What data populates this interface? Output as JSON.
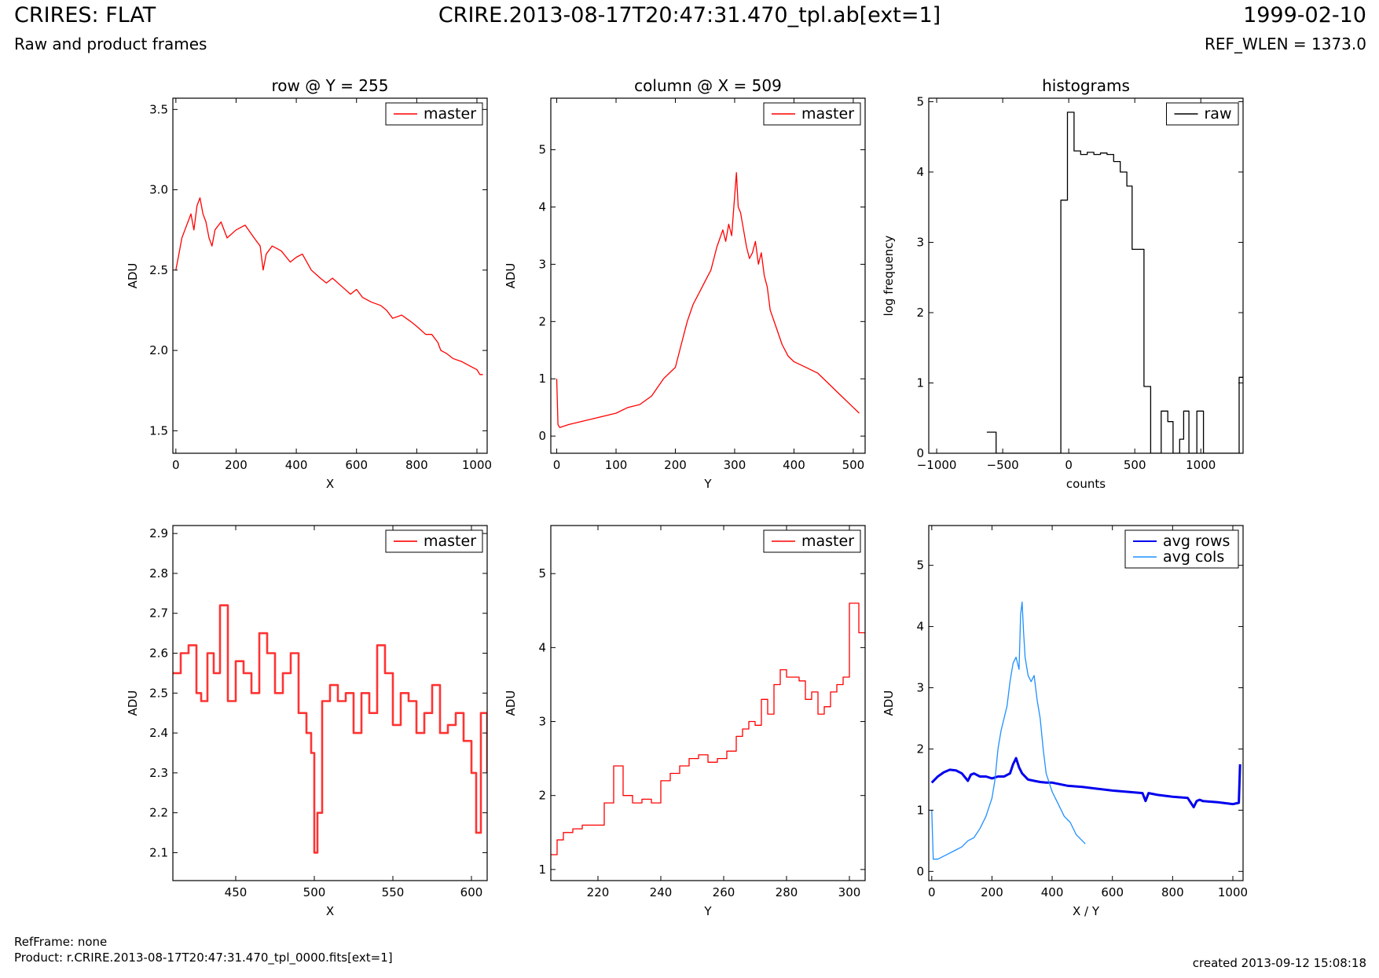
{
  "header": {
    "title": "CRIRES: FLAT",
    "subtitle": "Raw and product frames",
    "filename": "CRIRE.2013-08-17T20:47:31.470_tpl.ab[ext=1]",
    "date": "1999-02-10",
    "ref_wlen": "REF_WLEN = 1373.0"
  },
  "footer": {
    "refframe": "RefFrame: none",
    "product": "Product: r.CRIRE.2013-08-17T20:47:31.470_tpl_0000.fits[ext=1]",
    "created": "created 2013-09-12 15:08:18"
  },
  "colors": {
    "master": "#ff0000",
    "master_zoom": "#ff3333",
    "raw": "#000000",
    "avg_rows": "#0000ee",
    "avg_cols": "#1e90ff"
  },
  "chart_data": [
    {
      "id": "row",
      "type": "line",
      "title": "row @ Y = 255",
      "xlabel": "X",
      "ylabel": "ADU",
      "xlim": [
        -10,
        1034
      ],
      "ylim": [
        1.36,
        3.57
      ],
      "xticks": [
        0,
        200,
        400,
        600,
        800,
        1000
      ],
      "yticks": [
        1.5,
        2.0,
        2.5,
        3.0,
        3.5
      ],
      "legend": "top-right",
      "series": [
        {
          "name": "master",
          "color": "#ff0000",
          "width": 1.3,
          "x": [
            0,
            10,
            20,
            30,
            40,
            50,
            60,
            70,
            80,
            90,
            100,
            110,
            120,
            130,
            150,
            170,
            200,
            230,
            260,
            280,
            290,
            300,
            320,
            350,
            380,
            400,
            420,
            450,
            480,
            500,
            520,
            550,
            580,
            600,
            620,
            650,
            680,
            700,
            720,
            750,
            780,
            800,
            830,
            850,
            870,
            880,
            900,
            920,
            950,
            980,
            1000,
            1010,
            1020
          ],
          "y": [
            2.5,
            2.6,
            2.7,
            2.75,
            2.8,
            2.85,
            2.75,
            2.9,
            2.95,
            2.85,
            2.8,
            2.7,
            2.65,
            2.75,
            2.8,
            2.7,
            2.75,
            2.78,
            2.7,
            2.65,
            2.5,
            2.6,
            2.65,
            2.62,
            2.55,
            2.58,
            2.6,
            2.5,
            2.45,
            2.42,
            2.45,
            2.4,
            2.35,
            2.38,
            2.33,
            2.3,
            2.28,
            2.25,
            2.2,
            2.22,
            2.18,
            2.15,
            2.1,
            2.1,
            2.05,
            2.0,
            1.98,
            1.95,
            1.93,
            1.9,
            1.88,
            1.85,
            1.85
          ]
        }
      ]
    },
    {
      "id": "col",
      "type": "line",
      "title": "column @ X = 509",
      "xlabel": "Y",
      "ylabel": "ADU",
      "xlim": [
        -10,
        520
      ],
      "ylim": [
        -0.3,
        5.9
      ],
      "xticks": [
        0,
        100,
        200,
        300,
        400,
        500
      ],
      "yticks": [
        0,
        1,
        2,
        3,
        4,
        5
      ],
      "legend": "top-right",
      "series": [
        {
          "name": "master",
          "color": "#ff0000",
          "width": 1.3,
          "x": [
            0,
            2,
            5,
            20,
            40,
            60,
            80,
            100,
            120,
            140,
            160,
            180,
            200,
            210,
            220,
            230,
            240,
            250,
            260,
            270,
            280,
            285,
            290,
            295,
            300,
            303,
            306,
            310,
            315,
            320,
            325,
            330,
            335,
            340,
            345,
            350,
            355,
            360,
            370,
            380,
            390,
            400,
            420,
            440,
            460,
            480,
            500,
            510
          ],
          "y": [
            1.0,
            0.2,
            0.15,
            0.2,
            0.25,
            0.3,
            0.35,
            0.4,
            0.5,
            0.55,
            0.7,
            1.0,
            1.2,
            1.6,
            2.0,
            2.3,
            2.5,
            2.7,
            2.9,
            3.3,
            3.6,
            3.4,
            3.7,
            3.5,
            4.2,
            4.6,
            4.0,
            3.9,
            3.6,
            3.3,
            3.1,
            3.2,
            3.4,
            3.0,
            3.2,
            2.8,
            2.6,
            2.2,
            1.9,
            1.6,
            1.4,
            1.3,
            1.2,
            1.1,
            0.9,
            0.7,
            0.5,
            0.4
          ]
        }
      ]
    },
    {
      "id": "hist",
      "type": "line",
      "title": "histograms",
      "xlabel": "counts",
      "ylabel": "log frequency",
      "xlim": [
        -1060,
        1320
      ],
      "ylim": [
        0,
        5.05
      ],
      "xticks": [
        -1000,
        -500,
        0,
        500,
        1000
      ],
      "yticks": [
        0,
        1,
        2,
        3,
        4,
        5
      ],
      "legend": "top-right",
      "series": [
        {
          "name": "raw",
          "color": "#000000",
          "width": 1.3,
          "step": "post",
          "x": [
            -620,
            -550,
            -90,
            -60,
            -10,
            40,
            90,
            140,
            190,
            240,
            290,
            340,
            390,
            440,
            480,
            510,
            570,
            620,
            660,
            700,
            750,
            790,
            840,
            870,
            910,
            970,
            1020,
            1050,
            1290,
            1320
          ],
          "y": [
            0.3,
            0,
            0,
            3.6,
            4.85,
            4.3,
            4.25,
            4.28,
            4.25,
            4.27,
            4.25,
            4.15,
            4.0,
            3.8,
            2.9,
            2.9,
            0.95,
            0.0,
            0.0,
            0.6,
            0.45,
            0.0,
            0.2,
            0.6,
            0.0,
            0.6,
            0.0,
            0.0,
            1.08,
            1.08
          ]
        }
      ]
    },
    {
      "id": "row_zoom",
      "type": "line",
      "xlabel": "X",
      "ylabel": "ADU",
      "xlim": [
        410,
        610
      ],
      "ylim": [
        2.03,
        2.92
      ],
      "xticks": [
        450,
        500,
        550,
        600
      ],
      "yticks": [
        2.1,
        2.2,
        2.3,
        2.4,
        2.5,
        2.6,
        2.7,
        2.8,
        2.9
      ],
      "legend": "top-right",
      "series": [
        {
          "name": "master",
          "color": "#ff3333",
          "width": 2.6,
          "step": "post",
          "x": [
            410,
            415,
            420,
            425,
            428,
            432,
            436,
            440,
            445,
            450,
            455,
            460,
            465,
            470,
            475,
            480,
            485,
            490,
            495,
            498,
            500,
            502,
            505,
            510,
            515,
            520,
            525,
            530,
            535,
            540,
            545,
            550,
            555,
            560,
            565,
            570,
            575,
            580,
            585,
            590,
            595,
            600,
            603,
            606,
            610
          ],
          "y": [
            2.55,
            2.6,
            2.62,
            2.5,
            2.48,
            2.6,
            2.55,
            2.72,
            2.48,
            2.58,
            2.55,
            2.5,
            2.65,
            2.6,
            2.5,
            2.55,
            2.6,
            2.45,
            2.4,
            2.35,
            2.1,
            2.2,
            2.48,
            2.52,
            2.48,
            2.5,
            2.4,
            2.5,
            2.45,
            2.62,
            2.55,
            2.42,
            2.5,
            2.48,
            2.4,
            2.45,
            2.52,
            2.4,
            2.42,
            2.45,
            2.38,
            2.3,
            2.15,
            2.45,
            2.3
          ]
        }
      ]
    },
    {
      "id": "col_zoom",
      "type": "line",
      "xlabel": "Y",
      "ylabel": "ADU",
      "xlim": [
        205,
        305
      ],
      "ylim": [
        0.85,
        5.65
      ],
      "xticks": [
        220,
        240,
        260,
        280,
        300
      ],
      "yticks": [
        1,
        2,
        3,
        4,
        5
      ],
      "legend": "top-right",
      "series": [
        {
          "name": "master",
          "color": "#ff0000",
          "width": 1.3,
          "step": "post",
          "x": [
            205,
            207,
            209,
            212,
            215,
            218,
            222,
            225,
            228,
            231,
            234,
            237,
            240,
            243,
            246,
            249,
            252,
            255,
            258,
            261,
            264,
            266,
            268,
            270,
            272,
            274,
            276,
            278,
            280,
            282,
            284,
            286,
            288,
            290,
            292,
            294,
            296,
            298,
            300,
            303,
            305
          ],
          "y": [
            1.2,
            1.4,
            1.5,
            1.55,
            1.6,
            1.6,
            1.9,
            2.4,
            2.0,
            1.9,
            1.95,
            1.9,
            2.2,
            2.3,
            2.4,
            2.5,
            2.55,
            2.45,
            2.5,
            2.6,
            2.8,
            2.9,
            3.0,
            2.95,
            3.3,
            3.1,
            3.5,
            3.7,
            3.6,
            3.6,
            3.55,
            3.3,
            3.4,
            3.1,
            3.2,
            3.4,
            3.5,
            3.6,
            4.6,
            4.2,
            4.1
          ]
        }
      ]
    },
    {
      "id": "avg",
      "type": "line",
      "xlabel": "X / Y",
      "ylabel": "ADU",
      "xlim": [
        -10,
        1034
      ],
      "ylim": [
        -0.15,
        5.65
      ],
      "xticks": [
        0,
        200,
        400,
        600,
        800,
        1000
      ],
      "yticks": [
        0,
        1,
        2,
        3,
        4,
        5
      ],
      "legend": "top-right",
      "series": [
        {
          "name": "avg rows",
          "color": "#0000ee",
          "width": 3,
          "x": [
            0,
            20,
            40,
            60,
            80,
            100,
            120,
            130,
            140,
            160,
            180,
            200,
            220,
            240,
            260,
            270,
            280,
            290,
            300,
            320,
            340,
            360,
            380,
            400,
            450,
            500,
            550,
            600,
            650,
            700,
            710,
            720,
            750,
            800,
            850,
            870,
            880,
            890,
            900,
            950,
            1000,
            1020,
            1024
          ],
          "y": [
            1.45,
            1.55,
            1.62,
            1.66,
            1.65,
            1.6,
            1.48,
            1.58,
            1.6,
            1.55,
            1.55,
            1.52,
            1.55,
            1.55,
            1.6,
            1.75,
            1.85,
            1.7,
            1.6,
            1.5,
            1.48,
            1.46,
            1.45,
            1.45,
            1.4,
            1.38,
            1.35,
            1.32,
            1.3,
            1.28,
            1.15,
            1.28,
            1.25,
            1.22,
            1.2,
            1.05,
            1.15,
            1.17,
            1.15,
            1.13,
            1.1,
            1.12,
            1.75
          ]
        },
        {
          "name": "avg cols",
          "color": "#1e90ff",
          "width": 1.3,
          "x": [
            0,
            5,
            20,
            40,
            60,
            80,
            100,
            120,
            140,
            160,
            180,
            200,
            210,
            220,
            230,
            240,
            250,
            260,
            270,
            280,
            290,
            295,
            300,
            305,
            310,
            320,
            330,
            340,
            350,
            360,
            370,
            380,
            400,
            420,
            440,
            460,
            480,
            500,
            510
          ],
          "y": [
            1.0,
            0.2,
            0.2,
            0.25,
            0.3,
            0.35,
            0.4,
            0.5,
            0.55,
            0.7,
            0.9,
            1.2,
            1.5,
            2.0,
            2.3,
            2.5,
            2.7,
            3.1,
            3.4,
            3.5,
            3.3,
            4.2,
            4.4,
            3.9,
            3.5,
            3.2,
            3.1,
            3.2,
            2.8,
            2.5,
            2.0,
            1.6,
            1.3,
            1.1,
            0.9,
            0.8,
            0.6,
            0.5,
            0.45
          ]
        }
      ]
    }
  ]
}
